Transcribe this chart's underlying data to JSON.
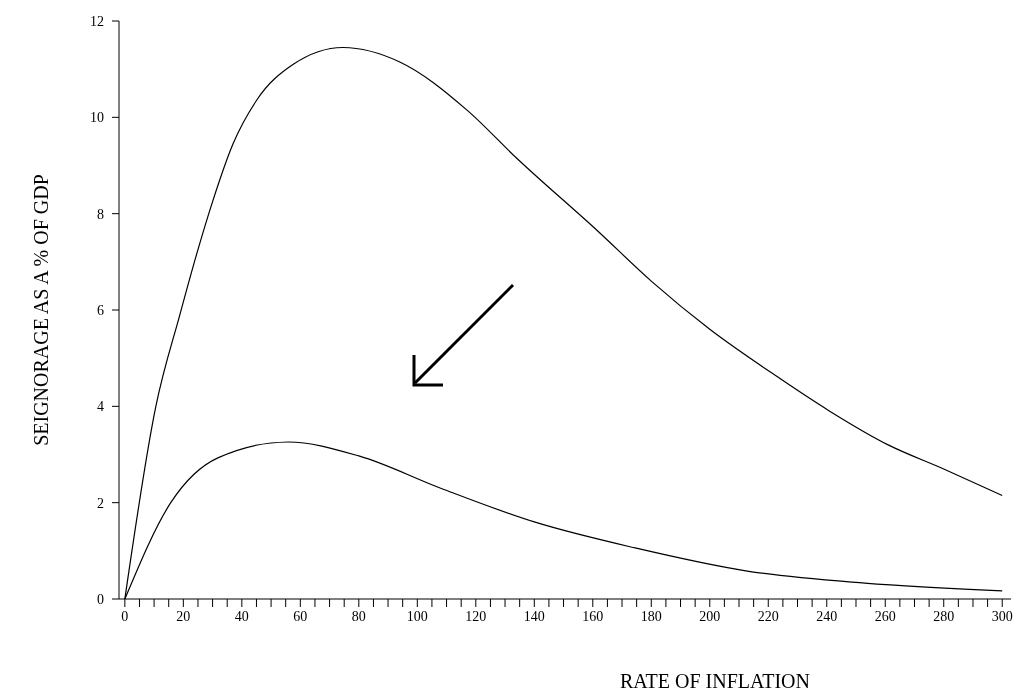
{
  "chart_data": {
    "type": "line",
    "xlabel": "RATE OF INFLATION",
    "ylabel": "SEIGNORAGE AS A % OF GDP",
    "xlim": [
      -2,
      303
    ],
    "ylim": [
      0,
      12
    ],
    "xticks": [
      0,
      {
        "value": 5,
        "label": null
      },
      {
        "value": 10,
        "label": null
      },
      {
        "value": 15,
        "label": null
      },
      20,
      {
        "value": 25,
        "label": null
      },
      {
        "value": 30,
        "label": null
      },
      {
        "value": 35,
        "label": null
      },
      40,
      {
        "value": 45,
        "label": null
      },
      {
        "value": 50,
        "label": null
      },
      {
        "value": 55,
        "label": null
      },
      60,
      {
        "value": 65,
        "label": null
      },
      {
        "value": 70,
        "label": null
      },
      {
        "value": 75,
        "label": null
      },
      80,
      {
        "value": 85,
        "label": null
      },
      {
        "value": 90,
        "label": null
      },
      {
        "value": 95,
        "label": null
      },
      100,
      {
        "value": 105,
        "label": null
      },
      {
        "value": 110,
        "label": null
      },
      {
        "value": 115,
        "label": null
      },
      120,
      {
        "value": 125,
        "label": null
      },
      {
        "value": 130,
        "label": null
      },
      {
        "value": 135,
        "label": null
      },
      140,
      {
        "value": 145,
        "label": null
      },
      {
        "value": 150,
        "label": null
      },
      {
        "value": 155,
        "label": null
      },
      160,
      {
        "value": 165,
        "label": null
      },
      {
        "value": 170,
        "label": null
      },
      {
        "value": 175,
        "label": null
      },
      180,
      {
        "value": 185,
        "label": null
      },
      {
        "value": 190,
        "label": null
      },
      {
        "value": 195,
        "label": null
      },
      200,
      {
        "value": 205,
        "label": null
      },
      {
        "value": 210,
        "label": null
      },
      {
        "value": 215,
        "label": null
      },
      220,
      {
        "value": 225,
        "label": null
      },
      {
        "value": 230,
        "label": null
      },
      {
        "value": 235,
        "label": null
      },
      240,
      {
        "value": 245,
        "label": null
      },
      {
        "value": 250,
        "label": null
      },
      {
        "value": 255,
        "label": null
      },
      260,
      {
        "value": 265,
        "label": null
      },
      {
        "value": 270,
        "label": null
      },
      {
        "value": 275,
        "label": null
      },
      280,
      {
        "value": 285,
        "label": null
      },
      {
        "value": 290,
        "label": null
      },
      {
        "value": 295,
        "label": null
      },
      300
    ],
    "yticks": [
      0,
      2,
      4,
      6,
      8,
      10,
      12
    ],
    "marker": "none",
    "line_style": "solid",
    "grid": false,
    "series": [
      {
        "color": "#000000",
        "x": [
          0,
          10.6,
          18.8,
          24.5,
          30,
          37,
          45,
          57.6,
          74.6,
          94,
          117,
          134,
          161.5,
          180,
          200,
          221,
          241,
          261,
          280,
          300
        ],
        "values": [
          0,
          4.0,
          5.9,
          7.15,
          8.25,
          9.45,
          10.35,
          11.1,
          11.45,
          11.15,
          10.15,
          9.15,
          7.65,
          6.6,
          5.6,
          4.7,
          3.9,
          3.2,
          2.7,
          2.15
        ]
      },
      {
        "color": "#000000",
        "x": [
          0,
          15.7,
          31.8,
          55.8,
          80,
          108,
          140,
          174.5,
          212.8,
          253,
          300
        ],
        "values": [
          0,
          2.0,
          2.93,
          3.26,
          2.97,
          2.3,
          1.6,
          1.06,
          0.58,
          0.33,
          0.17
        ]
      }
    ]
  }
}
